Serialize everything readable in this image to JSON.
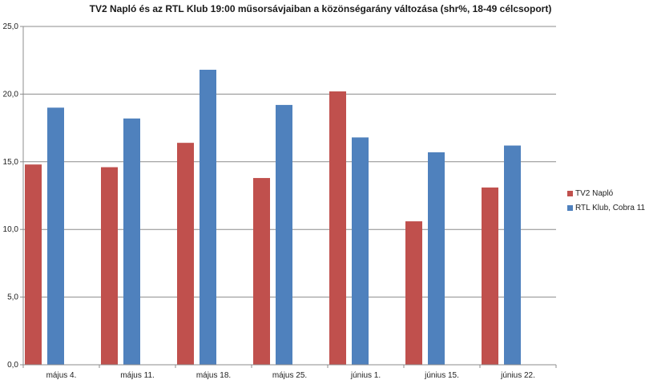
{
  "chart_data": {
    "type": "bar",
    "title": "TV2 Napló és az RTL Klub 19:00 műsorsávjaiban  a közönségarány változása (shr%, 18-49 célcsoport)",
    "categories": [
      "május 4.",
      "május 11.",
      "május 18.",
      "május 25.",
      "június 1.",
      "június 15.",
      "június 22."
    ],
    "series": [
      {
        "name": "TV2 Napló",
        "color": "#c0504d",
        "values": [
          14.8,
          14.6,
          16.4,
          13.8,
          20.2,
          10.6,
          13.1
        ]
      },
      {
        "name": "RTL Klub, Cobra 11",
        "color": "#4f81bd",
        "values": [
          19.0,
          18.2,
          21.8,
          19.2,
          16.8,
          15.7,
          16.2
        ]
      }
    ],
    "ylim": [
      0,
      25
    ],
    "yticks": [
      "0,0",
      "5,0",
      "10,0",
      "15,0",
      "20,0",
      "25,0"
    ],
    "grid": true,
    "legend_position": "right"
  }
}
